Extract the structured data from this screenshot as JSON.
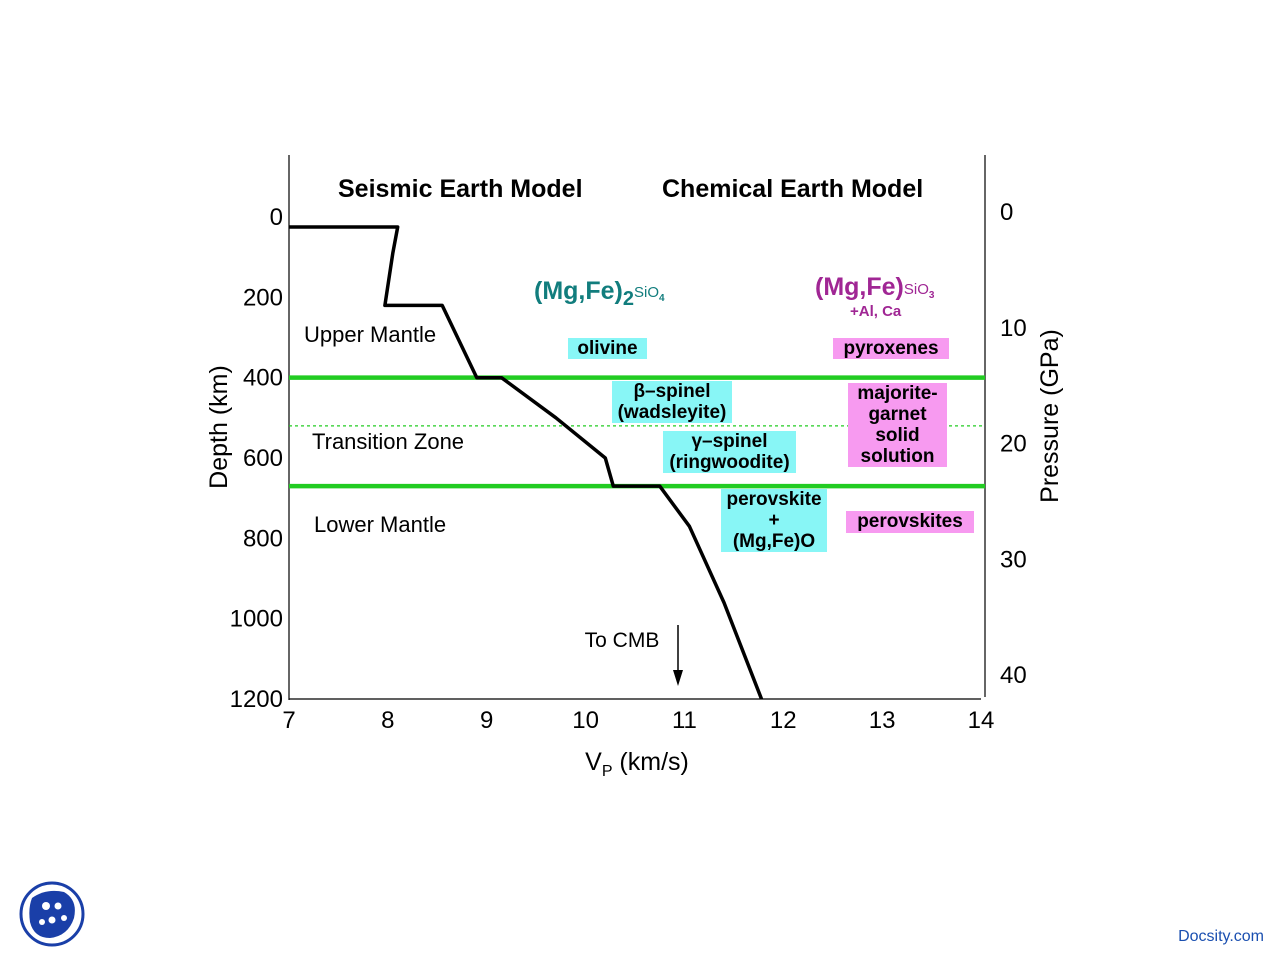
{
  "chart_data": {
    "type": "line",
    "titles": [
      "Seismic Earth Model",
      "Chemical Earth Model"
    ],
    "xlabel_main": "V",
    "xlabel_sub": "P",
    "xlabel_unit": " (km/s)",
    "ylabel_left": "Depth (km)",
    "ylabel_right": "Pressure (GPa)",
    "xlim": [
      7,
      14
    ],
    "ylim_depth": [
      1200,
      0
    ],
    "xticks": [
      7,
      8,
      9,
      10,
      11,
      12,
      13,
      14
    ],
    "yticks_depth": [
      0,
      200,
      400,
      600,
      800,
      1000,
      1200
    ],
    "yticks_pressure": [
      0,
      10,
      20,
      30,
      40
    ],
    "series": [
      {
        "points": [
          {
            "x": 7.0,
            "depth": 25
          },
          {
            "x": 8.1,
            "depth": 25
          },
          {
            "x": 8.05,
            "depth": 90
          },
          {
            "x": 7.97,
            "depth": 220
          },
          {
            "x": 8.55,
            "depth": 220
          },
          {
            "x": 8.9,
            "depth": 400
          },
          {
            "x": 9.15,
            "depth": 400
          },
          {
            "x": 9.7,
            "depth": 500
          },
          {
            "x": 10.2,
            "depth": 600
          },
          {
            "x": 10.28,
            "depth": 670
          },
          {
            "x": 10.75,
            "depth": 670
          },
          {
            "x": 11.05,
            "depth": 770
          },
          {
            "x": 11.4,
            "depth": 960
          },
          {
            "x": 11.78,
            "depth": 1200
          }
        ]
      }
    ],
    "discontinuities": [
      {
        "depth": 400,
        "style": "solid",
        "color": "#22cc22"
      },
      {
        "depth": 520,
        "style": "dotted",
        "color": "#22cc22"
      },
      {
        "depth": 670,
        "style": "solid",
        "color": "#22cc22"
      }
    ],
    "arrow_label": "To CMB",
    "colors": {
      "velocity_line": "#000000",
      "boundary": "#22cc22",
      "olivine_box": "#88f6f6",
      "pyroxene_box": "#f79af0",
      "olivine_formula": "#117d7d",
      "pyroxene_formula": "#a02694"
    }
  },
  "zones": {
    "upper": "Upper Mantle",
    "transition": "Transition Zone",
    "lower": "Lower Mantle"
  },
  "formulas": {
    "olivine": {
      "main": "(Mg,Fe)",
      "sub_num": "2",
      "rest": "SiO",
      "rest_sub": "4"
    },
    "pyroxene": {
      "main": "(Mg,Fe)",
      "rest": "SiO",
      "rest_sub": "3",
      "extra": "+Al, Ca"
    }
  },
  "minerals": {
    "olivine": "olivine",
    "beta_l1": "β–spinel",
    "beta_l2": "(wadsleyite)",
    "gamma_l1": "γ–spinel",
    "gamma_l2": "(ringwoodite)",
    "pv_l1": "perovskite",
    "pv_l2": "+",
    "pv_l3": "(Mg,Fe)O",
    "pyroxenes": "pyroxenes",
    "maj_l1": "majorite-",
    "maj_l2": "garnet",
    "maj_l3": "solid",
    "maj_l4": "solution",
    "perovskites": "perovskites"
  },
  "footer": {
    "logo_icon": "docsity-logo-icon",
    "brand": "Docsity.com"
  }
}
